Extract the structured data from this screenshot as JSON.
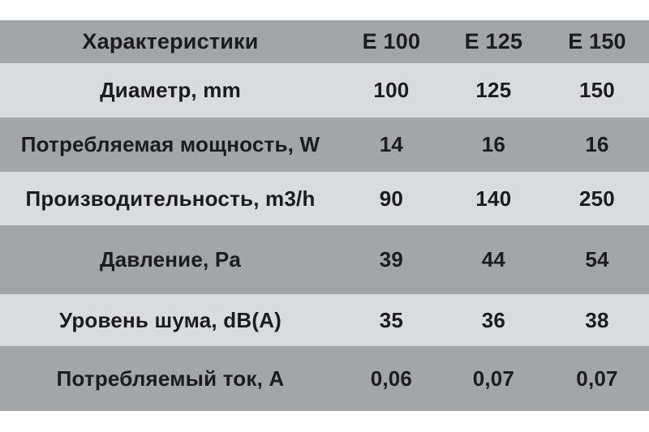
{
  "chart_data": {
    "type": "table",
    "columns": [
      "Характеристики",
      "E 100",
      "E 125",
      "E 150"
    ],
    "rows": [
      [
        "Диаметр, mm",
        "100",
        "125",
        "150"
      ],
      [
        "Потребляемая мощность, W",
        "14",
        "16",
        "16"
      ],
      [
        "Производительность, m3/h",
        "90",
        "140",
        "250"
      ],
      [
        "Давление, Pa",
        "39",
        "44",
        "54"
      ],
      [
        "Уровень шума, dB(A)",
        "35",
        "36",
        "38"
      ],
      [
        "Потребляемый ток, A",
        "0,06",
        "0,07",
        "0,07"
      ]
    ],
    "title": "",
    "legend": [],
    "layout_hints": {
      "striped": true,
      "header_position": "top",
      "label_column_align": "center",
      "value_columns_align": "center"
    }
  },
  "colors": {
    "row_dark": "#a3a6a9",
    "row_light": "#d9dbde",
    "text": "#1c1c1e",
    "background": "#ffffff"
  }
}
